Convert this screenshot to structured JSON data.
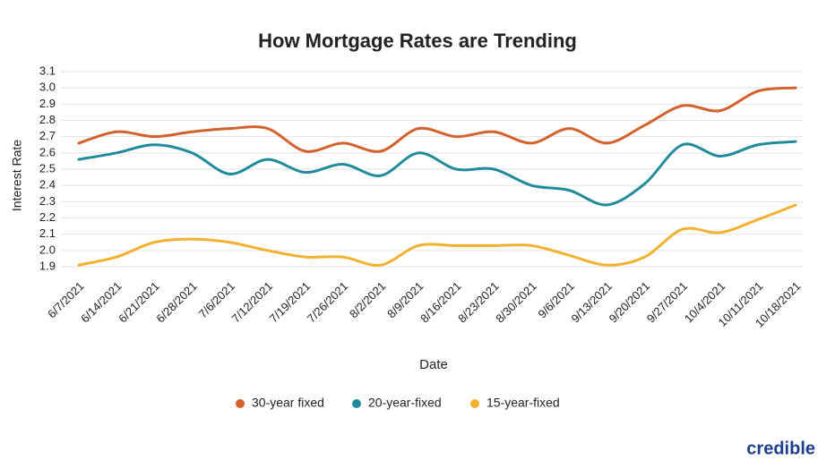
{
  "chart_data": {
    "type": "line",
    "title": "How Mortgage Rates are Trending",
    "x_label": "Date",
    "y_label": "Interest Rate",
    "categories": [
      "6/7/2021",
      "6/14/2021",
      "6/21/2021",
      "6/28/2021",
      "7/6/2021",
      "7/12/2021",
      "7/19/2021",
      "7/26/2021",
      "8/2/2021",
      "8/9/2021",
      "8/16/2021",
      "8/23/2021",
      "8/30/2021",
      "9/6/2021",
      "9/13/2021",
      "9/20/2021",
      "9/27/2021",
      "10/4/2021",
      "10/11/2021",
      "10/18/2021"
    ],
    "series": [
      {
        "name": "30-year fixed",
        "color": "#d4602b",
        "values": [
          2.66,
          2.73,
          2.7,
          2.73,
          2.75,
          2.75,
          2.61,
          2.66,
          2.61,
          2.75,
          2.7,
          2.73,
          2.66,
          2.75,
          2.66,
          2.77,
          2.89,
          2.86,
          2.98,
          3.0
        ]
      },
      {
        "name": "20-year-fixed",
        "color": "#1f8b9b",
        "values": [
          2.56,
          2.6,
          2.65,
          2.6,
          2.47,
          2.56,
          2.48,
          2.53,
          2.46,
          2.6,
          2.5,
          2.5,
          2.4,
          2.37,
          2.28,
          2.41,
          2.65,
          2.58,
          2.65,
          2.67
        ]
      },
      {
        "name": "15-year-fixed",
        "color": "#f2b12f",
        "values": [
          1.91,
          1.96,
          2.05,
          2.07,
          2.05,
          2.0,
          1.96,
          1.96,
          1.91,
          2.03,
          2.03,
          2.03,
          2.03,
          1.97,
          1.91,
          1.96,
          2.13,
          2.11,
          2.19,
          2.28
        ]
      }
    ],
    "ylim": [
      1.9,
      3.1
    ],
    "yticks": [
      1.9,
      {
        "value": 2,
        "label": "2.0"
      },
      2.1,
      2.2,
      2.3,
      2.4,
      2.5,
      2.6,
      2.7,
      2.8,
      2.9,
      {
        "value": 3,
        "label": "3.0"
      },
      3.1
    ],
    "grid": true,
    "legend": "bottom"
  },
  "brand": "credible"
}
